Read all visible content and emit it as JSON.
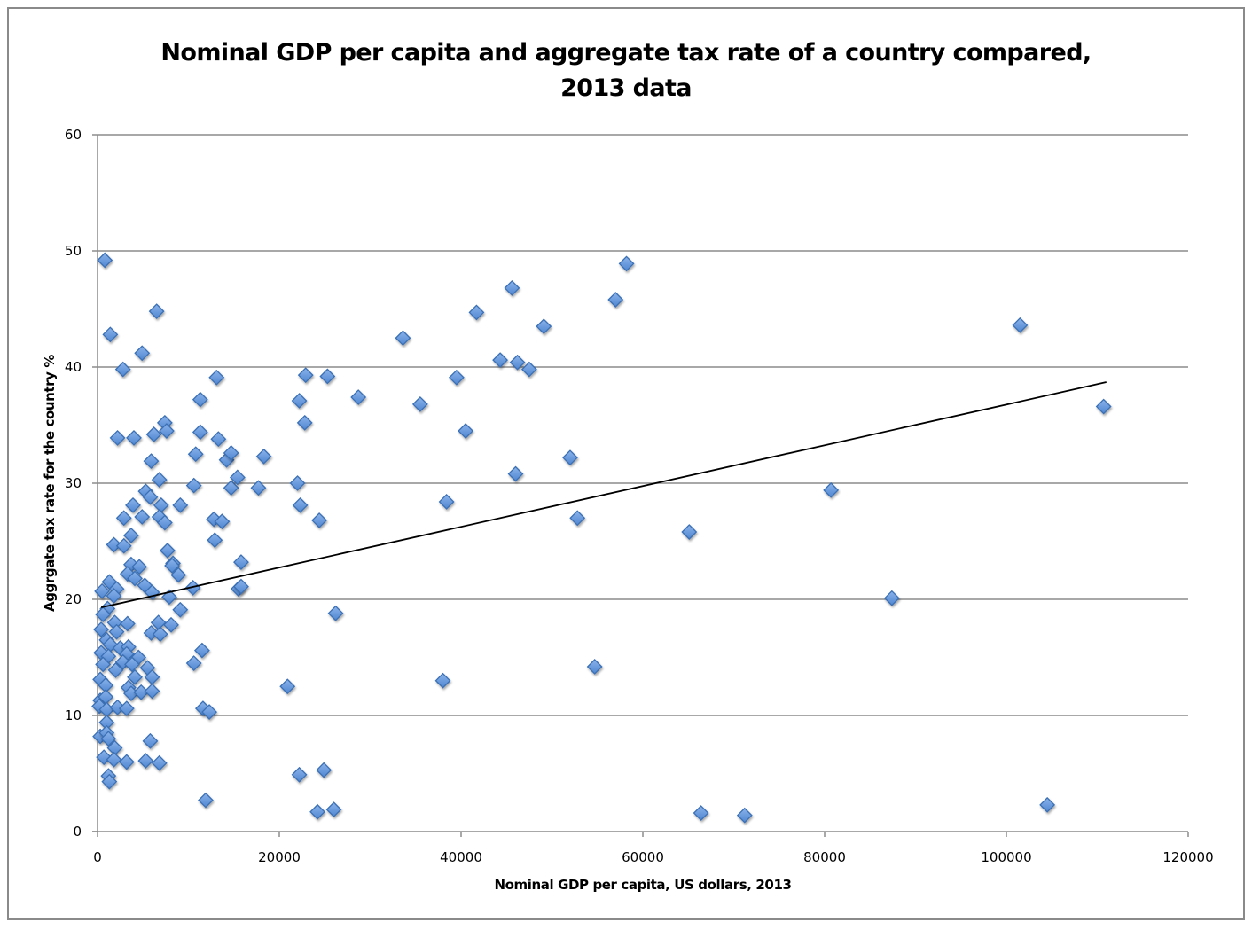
{
  "chart_data": {
    "type": "scatter",
    "title": "Nominal GDP per capita and aggregate tax rate of a country compared, 2013 data",
    "title_lines": [
      "Nominal GDP per capita and aggregate tax rate of a country compared,",
      "2013 data"
    ],
    "xlabel": "Nominal GDP per capita, US dollars, 2013",
    "ylabel": "Aggrgate tax rate for the country %",
    "xlim": [
      0,
      120000
    ],
    "ylim": [
      0,
      60
    ],
    "x_ticks": [
      0,
      20000,
      40000,
      60000,
      80000,
      100000,
      120000
    ],
    "y_ticks": [
      0,
      10,
      20,
      30,
      40,
      50,
      60
    ],
    "grid": "horizontal",
    "legend": "none",
    "marker": "diamond",
    "marker_color": "#5b8fd6",
    "marker_edge_color": "#3a6fb5",
    "trendline": {
      "type": "linear",
      "x": [
        400,
        111000
      ],
      "y": [
        19.3,
        38.7
      ],
      "color": "#000000"
    },
    "points": [
      [
        800,
        49.2
      ],
      [
        6500,
        44.8
      ],
      [
        1400,
        42.8
      ],
      [
        4900,
        41.2
      ],
      [
        2800,
        39.8
      ],
      [
        13100,
        39.1
      ],
      [
        11300,
        37.2
      ],
      [
        7400,
        35.2
      ],
      [
        2200,
        33.9
      ],
      [
        4000,
        33.9
      ],
      [
        6200,
        34.2
      ],
      [
        7600,
        34.5
      ],
      [
        11300,
        34.4
      ],
      [
        13300,
        33.8
      ],
      [
        5900,
        31.9
      ],
      [
        10800,
        32.5
      ],
      [
        14200,
        32.0
      ],
      [
        14700,
        32.6
      ],
      [
        6800,
        30.3
      ],
      [
        5300,
        29.3
      ],
      [
        10600,
        29.8
      ],
      [
        14700,
        29.6
      ],
      [
        15400,
        30.5
      ],
      [
        5800,
        28.8
      ],
      [
        3900,
        28.1
      ],
      [
        7000,
        28.1
      ],
      [
        9100,
        28.1
      ],
      [
        2900,
        27.0
      ],
      [
        4900,
        27.1
      ],
      [
        6800,
        27.1
      ],
      [
        7400,
        26.6
      ],
      [
        12800,
        26.9
      ],
      [
        13700,
        26.7
      ],
      [
        3700,
        25.5
      ],
      [
        1800,
        24.7
      ],
      [
        2900,
        24.6
      ],
      [
        7700,
        24.2
      ],
      [
        12900,
        25.1
      ],
      [
        3700,
        23.0
      ],
      [
        4600,
        22.8
      ],
      [
        8300,
        23.1
      ],
      [
        8200,
        22.9
      ],
      [
        15800,
        23.2
      ],
      [
        3300,
        22.2
      ],
      [
        4100,
        21.8
      ],
      [
        8900,
        22.1
      ],
      [
        1300,
        21.5
      ],
      [
        2100,
        20.9
      ],
      [
        5200,
        21.2
      ],
      [
        10500,
        21.0
      ],
      [
        15500,
        20.9
      ],
      [
        15800,
        21.1
      ],
      [
        500,
        20.7
      ],
      [
        1800,
        20.3
      ],
      [
        6000,
        20.6
      ],
      [
        7900,
        20.2
      ],
      [
        1100,
        19.2
      ],
      [
        600,
        18.7
      ],
      [
        1900,
        18.0
      ],
      [
        3300,
        17.9
      ],
      [
        6700,
        18.0
      ],
      [
        8100,
        17.8
      ],
      [
        9100,
        19.1
      ],
      [
        26200,
        18.8
      ],
      [
        400,
        17.4
      ],
      [
        2100,
        17.2
      ],
      [
        5900,
        17.1
      ],
      [
        6900,
        17.0
      ],
      [
        1000,
        16.5
      ],
      [
        1400,
        16.1
      ],
      [
        2500,
        15.8
      ],
      [
        3400,
        15.9
      ],
      [
        400,
        15.4
      ],
      [
        1200,
        15.1
      ],
      [
        3200,
        15.3
      ],
      [
        4500,
        15.0
      ],
      [
        11500,
        15.6
      ],
      [
        600,
        14.4
      ],
      [
        2800,
        14.6
      ],
      [
        3800,
        14.4
      ],
      [
        5500,
        14.1
      ],
      [
        10600,
        14.5
      ],
      [
        2000,
        13.9
      ],
      [
        300,
        13.1
      ],
      [
        4100,
        13.3
      ],
      [
        6000,
        13.3
      ],
      [
        900,
        12.6
      ],
      [
        3400,
        12.4
      ],
      [
        3700,
        11.9
      ],
      [
        4800,
        12.0
      ],
      [
        6000,
        12.1
      ],
      [
        300,
        11.3
      ],
      [
        900,
        11.6
      ],
      [
        200,
        10.8
      ],
      [
        1000,
        10.5
      ],
      [
        2200,
        10.7
      ],
      [
        3200,
        10.6
      ],
      [
        11600,
        10.6
      ],
      [
        12300,
        10.3
      ],
      [
        1000,
        9.4
      ],
      [
        300,
        8.2
      ],
      [
        1000,
        8.5
      ],
      [
        1200,
        8.0
      ],
      [
        5800,
        7.8
      ],
      [
        1900,
        7.2
      ],
      [
        700,
        6.4
      ],
      [
        1800,
        6.2
      ],
      [
        3200,
        6.0
      ],
      [
        5300,
        6.1
      ],
      [
        6800,
        5.9
      ],
      [
        1200,
        4.8
      ],
      [
        1300,
        4.3
      ],
      [
        11900,
        2.7
      ],
      [
        22200,
        37.1
      ],
      [
        22900,
        39.3
      ],
      [
        25300,
        39.2
      ],
      [
        28700,
        37.4
      ],
      [
        18300,
        32.3
      ],
      [
        22800,
        35.2
      ],
      [
        17700,
        29.6
      ],
      [
        22000,
        30.0
      ],
      [
        22300,
        28.1
      ],
      [
        24400,
        26.8
      ],
      [
        20900,
        12.5
      ],
      [
        22200,
        4.9
      ],
      [
        24900,
        5.3
      ],
      [
        24200,
        1.7
      ],
      [
        26000,
        1.9
      ],
      [
        33600,
        42.5
      ],
      [
        35500,
        36.8
      ],
      [
        39500,
        39.1
      ],
      [
        40500,
        34.5
      ],
      [
        38400,
        28.4
      ],
      [
        38000,
        13.0
      ],
      [
        41700,
        44.7
      ],
      [
        44300,
        40.6
      ],
      [
        45600,
        46.8
      ],
      [
        46200,
        40.4
      ],
      [
        47500,
        39.8
      ],
      [
        46000,
        30.8
      ],
      [
        49100,
        43.5
      ],
      [
        52000,
        32.2
      ],
      [
        52800,
        27.0
      ],
      [
        54700,
        14.2
      ],
      [
        57000,
        45.8
      ],
      [
        58200,
        48.9
      ],
      [
        65100,
        25.8
      ],
      [
        66400,
        1.6
      ],
      [
        71200,
        1.4
      ],
      [
        80700,
        29.4
      ],
      [
        87400,
        20.1
      ],
      [
        101500,
        43.6
      ],
      [
        104500,
        2.3
      ],
      [
        110700,
        36.6
      ]
    ]
  }
}
